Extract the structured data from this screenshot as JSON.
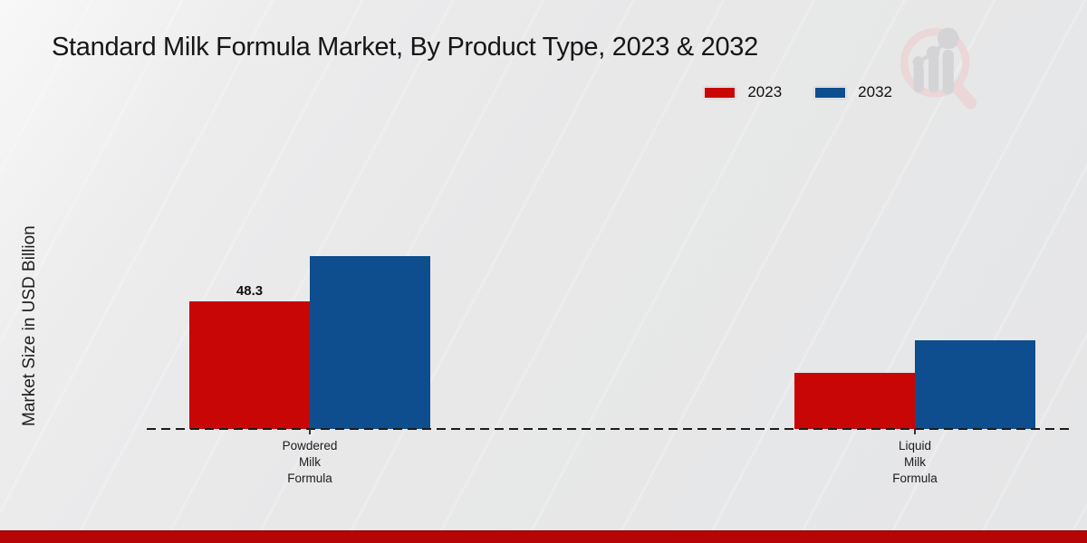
{
  "title": "Standard Milk Formula Market, By Product Type, 2023 & 2032",
  "legend": {
    "items": [
      {
        "label": "2023",
        "color": "#c80606"
      },
      {
        "label": "2032",
        "color": "#0e4e8e"
      }
    ]
  },
  "chart_data": {
    "type": "bar",
    "title": "Standard Milk Formula Market, By Product Type, 2023 & 2032",
    "ylabel": "Market Size in USD Billion",
    "xlabel": "",
    "unit": "USD Billion",
    "categories": [
      "Powdered Milk Formula",
      "Liquid Milk Formula"
    ],
    "category_label_lines": [
      [
        "Powdered",
        "Milk",
        "Formula"
      ],
      [
        "Liquid",
        "Milk",
        "Formula"
      ]
    ],
    "series": [
      {
        "name": "2023",
        "color": "#c80606",
        "values": [
          48.3,
          21.2
        ]
      },
      {
        "name": "2032",
        "color": "#0e4e8e",
        "values": [
          65.3,
          33.6
        ]
      }
    ],
    "value_labels": [
      {
        "series_index": 0,
        "category_index": 0,
        "text": "48.3"
      }
    ],
    "ylim": [
      0,
      110
    ],
    "grid": false,
    "legend_position": "top-right",
    "baseline_style": "dashed"
  },
  "colors": {
    "background": "#e8e8e9",
    "bottom_band": "#b70404",
    "axis_line": "#1c1c1c",
    "text": "#111111"
  },
  "icons": {
    "watermark": "magnifier-bar-chart-logo"
  }
}
